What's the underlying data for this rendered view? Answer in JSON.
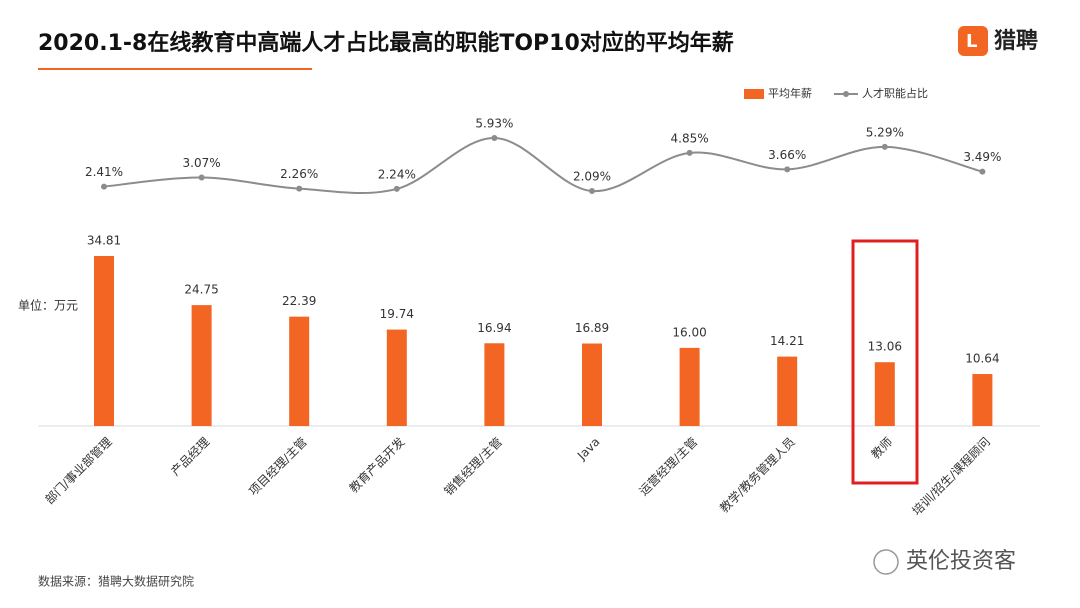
{
  "chart_data": {
    "type": "bar-line",
    "title": "2020.1-8在线教育中高端人才占比最高的职能TOP10对应的平均年薪",
    "unit_label": "单位：万元",
    "source": "数据来源：猎聘大数据研究院",
    "logo": "猎聘",
    "watermark": "英伦投资客",
    "categories": [
      "部门/事业部管理",
      "产品经理",
      "项目经理/主管",
      "教育产品开发",
      "销售经理/主管",
      "Java",
      "运营经理/主管",
      "教学/教务管理人员",
      "教师",
      "培训/招生/课程顾问"
    ],
    "series": [
      {
        "name": "平均年薪",
        "type": "bar",
        "color": "#f26522",
        "values": [
          34.81,
          24.75,
          22.39,
          19.74,
          16.94,
          16.89,
          16.0,
          14.21,
          13.06,
          10.64
        ],
        "value_labels": [
          "34.81",
          "24.75",
          "22.39",
          "19.74",
          "16.94",
          "16.89",
          "16.00",
          "14.21",
          "13.06",
          "10.64"
        ]
      },
      {
        "name": "人才职能占比",
        "type": "line",
        "color": "#8c8c8c",
        "values": [
          2.41,
          3.07,
          2.26,
          2.24,
          5.93,
          2.09,
          4.85,
          3.66,
          5.29,
          3.49
        ],
        "value_labels": [
          "2.41%",
          "3.07%",
          "2.26%",
          "2.24%",
          "5.93%",
          "2.09%",
          "4.85%",
          "3.66%",
          "5.29%",
          "3.49%"
        ]
      }
    ]
  }
}
